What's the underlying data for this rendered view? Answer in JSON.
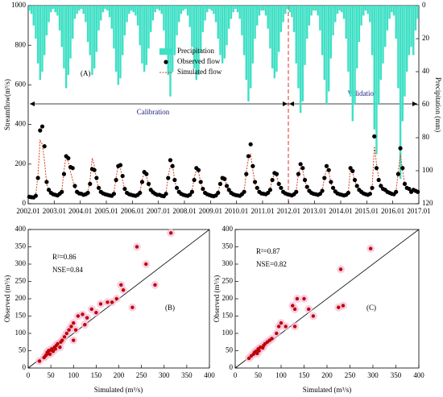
{
  "chart_data": [
    {
      "type": "combo",
      "annotations": [
        "(A)",
        "Calibration",
        "Validation"
      ],
      "ylabel": "Streamflow(m³/s)",
      "y2label": "Precipitation (mm)",
      "x": [
        "2002.01",
        "2002.02",
        "2002.03",
        "2002.04",
        "2002.05",
        "2002.06",
        "2002.07",
        "2002.08",
        "2002.09",
        "2002.10",
        "2002.11",
        "2002.12",
        "2003.01",
        "2003.02",
        "2003.03",
        "2003.04",
        "2003.05",
        "2003.06",
        "2003.07",
        "2003.08",
        "2003.09",
        "2003.10",
        "2003.11",
        "2003.12",
        "2004.01",
        "2004.02",
        "2004.03",
        "2004.04",
        "2004.05",
        "2004.06",
        "2004.07",
        "2004.08",
        "2004.09",
        "2004.10",
        "2004.11",
        "2004.12",
        "2005.01",
        "2005.02",
        "2005.03",
        "2005.04",
        "2005.05",
        "2005.06",
        "2005.07",
        "2005.08",
        "2005.09",
        "2005.10",
        "2005.11",
        "2005.12",
        "2006.01",
        "2006.02",
        "2006.03",
        "2006.04",
        "2006.05",
        "2006.06",
        "2006.07",
        "2006.08",
        "2006.09",
        "2006.10",
        "2006.11",
        "2006.12",
        "2007.01",
        "2007.02",
        "2007.03",
        "2007.04",
        "2007.05",
        "2007.06",
        "2007.07",
        "2007.08",
        "2007.09",
        "2007.10",
        "2007.11",
        "2007.12",
        "2008.01",
        "2008.02",
        "2008.03",
        "2008.04",
        "2008.05",
        "2008.06",
        "2008.07",
        "2008.08",
        "2008.09",
        "2008.10",
        "2008.11",
        "2008.12",
        "2009.01",
        "2009.02",
        "2009.03",
        "2009.04",
        "2009.05",
        "2009.06",
        "2009.07",
        "2009.08",
        "2009.09",
        "2009.10",
        "2009.11",
        "2009.12",
        "2010.01",
        "2010.02",
        "2010.03",
        "2010.04",
        "2010.05",
        "2010.06",
        "2010.07",
        "2010.08",
        "2010.09",
        "2010.10",
        "2010.11",
        "2010.12",
        "2011.01",
        "2011.02",
        "2011.03",
        "2011.04",
        "2011.05",
        "2011.06",
        "2011.07",
        "2011.08",
        "2011.09",
        "2011.10",
        "2011.11",
        "2011.12",
        "2012.01",
        "2012.02",
        "2012.03",
        "2012.04",
        "2012.05",
        "2012.06",
        "2012.07",
        "2012.08",
        "2012.09",
        "2012.10",
        "2012.11",
        "2012.12",
        "2013.01",
        "2013.02",
        "2013.03",
        "2013.04",
        "2013.05",
        "2013.06",
        "2013.07",
        "2013.08",
        "2013.09",
        "2013.10",
        "2013.11",
        "2013.12",
        "2014.01",
        "2014.02",
        "2014.03",
        "2014.04",
        "2014.05",
        "2014.06",
        "2014.07",
        "2014.08",
        "2014.09",
        "2014.10",
        "2014.11",
        "2014.12",
        "2015.01",
        "2015.02",
        "2015.03",
        "2015.04",
        "2015.05",
        "2015.06",
        "2015.07",
        "2015.08",
        "2015.09",
        "2015.10",
        "2015.11",
        "2015.12",
        "2016.01",
        "2016.02",
        "2016.03",
        "2016.04",
        "2016.05",
        "2016.06",
        "2016.07",
        "2016.08",
        "2016.09",
        "2016.10",
        "2016.11",
        "2016.12"
      ],
      "series": [
        {
          "name": "Precipitation",
          "color": "#3fe0c5",
          "axis": "y2",
          "style": "bar",
          "values": [
            3,
            5,
            12,
            20,
            35,
            45,
            40,
            30,
            18,
            10,
            4,
            2,
            4,
            6,
            15,
            25,
            38,
            50,
            42,
            32,
            20,
            8,
            5,
            3,
            2,
            5,
            10,
            22,
            30,
            42,
            38,
            28,
            15,
            9,
            4,
            2,
            3,
            7,
            14,
            26,
            40,
            48,
            44,
            30,
            18,
            10,
            5,
            3,
            4,
            6,
            12,
            24,
            35,
            40,
            36,
            26,
            16,
            9,
            4,
            2,
            3,
            5,
            15,
            28,
            42,
            55,
            40,
            30,
            18,
            10,
            5,
            3,
            2,
            6,
            13,
            25,
            38,
            45,
            42,
            28,
            16,
            9,
            4,
            2,
            3,
            5,
            10,
            20,
            30,
            35,
            32,
            24,
            14,
            8,
            4,
            2,
            4,
            8,
            18,
            30,
            45,
            58,
            50,
            35,
            20,
            12,
            6,
            3,
            3,
            6,
            14,
            26,
            38,
            44,
            40,
            28,
            16,
            10,
            5,
            2,
            4,
            7,
            16,
            35,
            50,
            65,
            58,
            36,
            20,
            12,
            6,
            3,
            3,
            6,
            15,
            30,
            45,
            60,
            52,
            32,
            18,
            10,
            5,
            3,
            4,
            8,
            20,
            40,
            55,
            70,
            60,
            38,
            22,
            12,
            6,
            3,
            5,
            10,
            30,
            75,
            90,
            60,
            45,
            35,
            25,
            15,
            8,
            4,
            6,
            20,
            50,
            105,
            70,
            55,
            40,
            30,
            25,
            30,
            15,
            8
          ]
        },
        {
          "name": "Observed flow",
          "color": "#000000",
          "style": "marker",
          "values": [
            35,
            33,
            32,
            40,
            130,
            370,
            390,
            290,
            110,
            70,
            55,
            48,
            45,
            42,
            50,
            60,
            150,
            240,
            230,
            185,
            180,
            90,
            60,
            52,
            50,
            45,
            48,
            55,
            100,
            175,
            170,
            130,
            80,
            60,
            52,
            48,
            45,
            42,
            40,
            50,
            120,
            190,
            195,
            140,
            75,
            55,
            48,
            45,
            42,
            40,
            45,
            55,
            110,
            160,
            150,
            100,
            70,
            58,
            50,
            45,
            45,
            40,
            38,
            50,
            130,
            220,
            190,
            120,
            80,
            60,
            50,
            45,
            42,
            40,
            45,
            60,
            120,
            180,
            170,
            110,
            75,
            55,
            48,
            44,
            40,
            38,
            42,
            55,
            100,
            130,
            125,
            90,
            70,
            55,
            48,
            44,
            42,
            40,
            48,
            60,
            150,
            240,
            300,
            190,
            110,
            80,
            60,
            52,
            50,
            48,
            55,
            70,
            120,
            155,
            150,
            100,
            80,
            60,
            52,
            48,
            45,
            42,
            48,
            60,
            150,
            200,
            180,
            120,
            85,
            65,
            55,
            50,
            48,
            45,
            50,
            65,
            130,
            190,
            170,
            110,
            80,
            62,
            52,
            48,
            45,
            42,
            45,
            55,
            180,
            165,
            120,
            90,
            70,
            60,
            52,
            48,
            45,
            50,
            80,
            340,
            180,
            120,
            90,
            75,
            70,
            60,
            55,
            50,
            48,
            60,
            150,
            280,
            180,
            100,
            80,
            75,
            60,
            70,
            65,
            60
          ]
        },
        {
          "name": "Simulated flow",
          "color": "#d2411e",
          "style": "dashed",
          "values": [
            38,
            36,
            34,
            45,
            140,
            320,
            300,
            220,
            100,
            65,
            52,
            45,
            42,
            40,
            48,
            65,
            170,
            245,
            210,
            160,
            120,
            80,
            58,
            50,
            48,
            44,
            46,
            60,
            120,
            230,
            190,
            120,
            75,
            58,
            50,
            46,
            44,
            41,
            40,
            55,
            130,
            195,
            180,
            120,
            70,
            52,
            46,
            43,
            41,
            39,
            44,
            58,
            120,
            160,
            140,
            95,
            68,
            56,
            48,
            44,
            44,
            40,
            38,
            55,
            140,
            190,
            200,
            115,
            78,
            58,
            48,
            44,
            41,
            39,
            44,
            62,
            130,
            170,
            160,
            105,
            72,
            54,
            46,
            43,
            39,
            37,
            41,
            58,
            105,
            125,
            140,
            88,
            68,
            54,
            47,
            43,
            41,
            39,
            46,
            62,
            160,
            230,
            250,
            170,
            100,
            75,
            58,
            50,
            48,
            46,
            54,
            72,
            125,
            150,
            140,
            95,
            78,
            58,
            50,
            46,
            44,
            41,
            47,
            62,
            155,
            180,
            170,
            115,
            82,
            62,
            53,
            48,
            47,
            44,
            49,
            66,
            135,
            170,
            160,
            105,
            78,
            60,
            50,
            46,
            44,
            41,
            44,
            58,
            175,
            160,
            115,
            88,
            68,
            58,
            50,
            46,
            44,
            48,
            85,
            290,
            200,
            130,
            92,
            74,
            68,
            58,
            53,
            48,
            46,
            62,
            160,
            250,
            170,
            98,
            78,
            72,
            58,
            68,
            62,
            58
          ]
        }
      ],
      "xlim": [
        2002,
        2017
      ],
      "xticks": [
        {
          "value": 2002,
          "label": "2002.01"
        },
        {
          "value": 2003,
          "label": "2003.01"
        },
        {
          "value": 2004,
          "label": "2004.01"
        },
        {
          "value": 2005,
          "label": "2005.01"
        },
        {
          "value": 2006,
          "label": "2006.01"
        },
        {
          "value": 2007,
          "label": "2007.01"
        },
        {
          "value": 2008,
          "label": "2008.01"
        },
        {
          "value": 2009,
          "label": "2009.01"
        },
        {
          "value": 2010,
          "label": "2010.01"
        },
        {
          "value": 2011,
          "label": "2011.01"
        },
        {
          "value": 2012,
          "label": "2012.01"
        },
        {
          "value": 2013,
          "label": "2013.01"
        },
        {
          "value": 2014,
          "label": "2014.01"
        },
        {
          "value": 2015,
          "label": "2015.01"
        },
        {
          "value": 2016,
          "label": "2016.01"
        },
        {
          "value": 2017,
          "label": "2017.01"
        }
      ],
      "ylim": [
        0,
        1000
      ],
      "yticks": [
        0,
        200,
        400,
        600,
        800,
        1000
      ],
      "y2lim": [
        0,
        120
      ],
      "y2ticks": [
        0,
        20,
        40,
        60,
        80,
        100,
        120
      ],
      "y2_inverted": true
    },
    {
      "type": "scatter",
      "annotations": [
        "R²=0.86",
        "NSE=0.84",
        "(B)"
      ],
      "xlabel": "Simulated (m³/s)",
      "ylabel": "Observed (m³/s)",
      "color": "#c00000",
      "diagonal": true,
      "x": [
        25,
        35,
        38,
        40,
        42,
        45,
        45,
        48,
        50,
        52,
        55,
        58,
        60,
        62,
        65,
        70,
        72,
        75,
        80,
        85,
        90,
        95,
        100,
        105,
        110,
        120,
        125,
        130,
        140,
        150,
        160,
        175,
        195,
        205,
        210,
        230,
        240,
        260,
        280,
        315,
        185,
        100
      ],
      "values": [
        20,
        30,
        35,
        38,
        45,
        42,
        50,
        40,
        52,
        55,
        48,
        60,
        55,
        65,
        70,
        60,
        75,
        80,
        90,
        100,
        110,
        120,
        130,
        110,
        150,
        155,
        125,
        145,
        170,
        160,
        185,
        190,
        200,
        240,
        225,
        175,
        350,
        300,
        240,
        390,
        190,
        80
      ],
      "xlim": [
        0,
        400
      ],
      "xticks": [
        0,
        50,
        100,
        150,
        200,
        250,
        300,
        350,
        400
      ],
      "ylim": [
        0,
        400
      ],
      "yticks": [
        0,
        50,
        100,
        150,
        200,
        250,
        300,
        350,
        400
      ]
    },
    {
      "type": "scatter",
      "annotations": [
        "R²=0.87",
        "NSE=0.82",
        "(C)"
      ],
      "xlabel": "Simulated (m³/s)",
      "ylabel": "Observed (m³/s)",
      "color": "#c00000",
      "diagonal": true,
      "x": [
        30,
        35,
        40,
        42,
        45,
        48,
        50,
        52,
        55,
        60,
        62,
        65,
        70,
        75,
        80,
        90,
        95,
        100,
        110,
        125,
        130,
        135,
        150,
        160,
        170,
        225,
        235,
        230,
        295,
        130
      ],
      "values": [
        28,
        35,
        40,
        45,
        48,
        42,
        55,
        50,
        60,
        58,
        65,
        70,
        75,
        80,
        85,
        100,
        120,
        130,
        120,
        180,
        170,
        200,
        200,
        170,
        150,
        175,
        180,
        285,
        345,
        120
      ],
      "xlim": [
        0,
        400
      ],
      "xticks": [
        0,
        50,
        100,
        150,
        200,
        250,
        300,
        350,
        400
      ],
      "ylim": [
        0,
        400
      ],
      "yticks": [
        0,
        50,
        100,
        150,
        200,
        250,
        300,
        350,
        400
      ]
    }
  ]
}
